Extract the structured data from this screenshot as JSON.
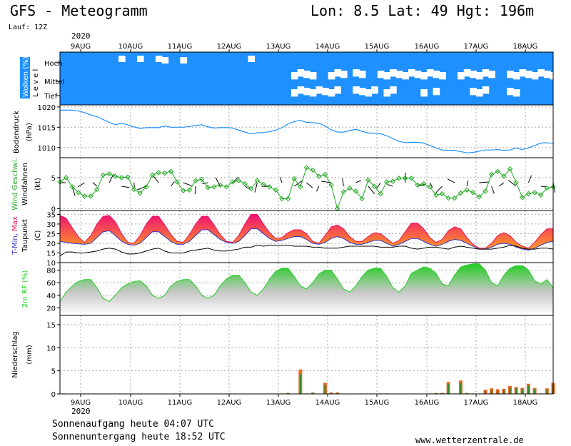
{
  "header": {
    "title": "GFS - Meteogramm",
    "coords": "Lon: 8.5 Lat: 49 Hgt: 196m",
    "run": "Lauf: 12Z",
    "year": "2020"
  },
  "footer": {
    "sunrise": "Sonnenaufgang heute 04:07 UTC",
    "sunset": "Sonnenuntergang heute 18:52 UTC",
    "source": "www.wetterzentrale.de"
  },
  "colors": {
    "cloud_clear": "#1e90ff",
    "cloud_cover": "#ffffff",
    "pressure": "#1e90ff",
    "wind": "#22aa22",
    "tmin": "#3333cc",
    "tmax": "#ee1155",
    "temp_fill_high": "#ee1177",
    "temp_fill_low": "#ffa020",
    "dewpoint": "#000000",
    "rh": "#22cc22",
    "precip_total": "#ee6622",
    "precip_conv": "#2e8b2e"
  },
  "chart_data": [
    {
      "type": "heatmap",
      "name_label": "Wolken (%)",
      "ylabel": "Level",
      "levels": [
        "Hoch",
        "Mittel",
        "Tief"
      ],
      "dates": [
        "9AUG",
        "10AUG",
        "11AUG",
        "12AUG",
        "13AUG",
        "14AUG",
        "15AUG",
        "16AUG",
        "17AUG",
        "18AUG"
      ],
      "cover_hoch": [
        0,
        0,
        0,
        0,
        0,
        0,
        0,
        0,
        0,
        0,
        1,
        0,
        0,
        1,
        0,
        0,
        1,
        1,
        0,
        0,
        1,
        0,
        0,
        0,
        0,
        0,
        0,
        0,
        0,
        0,
        0,
        1,
        0,
        0,
        0,
        0,
        0,
        0,
        0,
        0,
        0,
        0,
        0,
        0,
        0,
        0,
        0,
        0,
        0,
        0,
        0,
        0,
        0,
        0,
        0,
        0,
        0,
        0,
        0,
        0,
        0,
        0,
        0,
        0,
        0,
        0,
        0,
        0,
        0,
        0,
        0,
        0,
        0,
        0,
        0,
        0,
        0,
        0,
        0,
        0,
        0
      ],
      "cover_mittel": [
        0,
        0,
        0,
        0,
        0,
        0,
        0,
        0,
        0,
        0,
        0,
        0,
        0,
        0,
        0,
        0,
        0,
        0,
        0,
        0,
        0,
        0,
        0,
        0,
        0,
        0,
        0,
        0,
        0,
        0,
        0,
        0,
        0,
        0,
        0,
        0,
        0,
        0,
        1,
        1,
        1,
        1,
        0,
        0,
        1,
        1,
        1,
        0,
        1,
        1,
        0,
        0,
        1,
        1,
        1,
        1,
        1,
        1,
        1,
        1,
        1,
        1,
        1,
        0,
        0,
        1,
        1,
        1,
        1,
        1,
        1,
        0,
        0,
        1,
        1,
        1,
        1,
        1,
        1,
        1,
        1
      ],
      "cover_tief": [
        0,
        0,
        0,
        0,
        0,
        0,
        0,
        0,
        0,
        0,
        0,
        0,
        0,
        0,
        0,
        0,
        0,
        0,
        0,
        0,
        0,
        0,
        0,
        0,
        0,
        0,
        0,
        0,
        0,
        0,
        0,
        0,
        0,
        0,
        0,
        0,
        0,
        0,
        1,
        1,
        1,
        1,
        1,
        1,
        1,
        1,
        0,
        0,
        1,
        1,
        1,
        1,
        0,
        1,
        1,
        0,
        0,
        0,
        0,
        1,
        0,
        1,
        0,
        0,
        0,
        0,
        0,
        1,
        1,
        1,
        0,
        0,
        0,
        1,
        1,
        0,
        0,
        0,
        0,
        0,
        0
      ]
    },
    {
      "type": "line",
      "name_label": "Bodendruck",
      "ylabel": "(hPa)",
      "ylim": [
        1007.5,
        1020.5
      ],
      "yticks": [
        1010,
        1015,
        1020
      ],
      "values": [
        1019.2,
        1019.2,
        1019.2,
        1019.0,
        1018.6,
        1018.0,
        1017.6,
        1016.9,
        1016.2,
        1015.6,
        1016.0,
        1015.6,
        1015.1,
        1014.7,
        1014.9,
        1014.9,
        1014.9,
        1015.3,
        1015.0,
        1015.0,
        1015.0,
        1015.2,
        1015.4,
        1015.6,
        1015.1,
        1014.8,
        1014.9,
        1014.9,
        1014.8,
        1014.3,
        1013.8,
        1013.4,
        1013.6,
        1013.7,
        1013.9,
        1014.3,
        1014.9,
        1015.8,
        1016.4,
        1016.7,
        1016.2,
        1016.1,
        1016.0,
        1015.3,
        1014.4,
        1013.8,
        1013.8,
        1014.2,
        1014.5,
        1014.0,
        1013.6,
        1013.5,
        1013.4,
        1012.9,
        1012.2,
        1011.5,
        1011.2,
        1011.3,
        1011.3,
        1011.1,
        1010.5,
        1009.9,
        1009.4,
        1009.3,
        1009.3,
        1009.0,
        1008.7,
        1008.8,
        1009.1,
        1009.4,
        1009.4,
        1009.5,
        1009.3,
        1009.4,
        1009.9,
        1009.5,
        1009.9,
        1010.5,
        1011.1,
        1011.2,
        1011.0
      ]
    },
    {
      "type": "line",
      "name_label": "Wind Geschwi.",
      "name_label2": "Windfahnen",
      "ylabel": "(kt)",
      "ylim": [
        -0.3,
        8.2
      ],
      "yticks": [
        0,
        5
      ],
      "values": [
        4.3,
        5.0,
        3.5,
        2.6,
        2.0,
        2.0,
        3.1,
        5.4,
        5.6,
        5.2,
        5.0,
        5.1,
        3.1,
        2.5,
        3.5,
        5.4,
        5.8,
        5.7,
        6.0,
        4.3,
        2.9,
        3.0,
        4.5,
        4.7,
        3.4,
        3.5,
        3.8,
        3.5,
        4.3,
        4.5,
        4.0,
        3.2,
        4.5,
        3.9,
        3.5,
        3.0,
        1.6,
        1.6,
        4.8,
        3.5,
        6.6,
        6.2,
        5.2,
        5.5,
        3.8,
        0.0,
        2.7,
        3.3,
        2.8,
        1.6,
        4.6,
        3.6,
        2.4,
        4.3,
        4.4,
        4.9,
        4.9,
        4.9,
        3.8,
        4.0,
        3.5,
        2.2,
        2.4,
        1.7,
        1.7,
        2.5,
        3.0,
        2.6,
        1.9,
        2.8,
        5.5,
        6.0,
        5.2,
        6.4,
        4.2,
        1.8,
        2.4,
        2.6,
        2.2,
        3.3,
        3.5
      ]
    },
    {
      "type": "area",
      "name_label": "T-Min, Max",
      "name_label2": "Taupunkt",
      "ylabel": "(C)",
      "ylim": [
        10,
        37
      ],
      "yticks": [
        10,
        15,
        20,
        25,
        30,
        35
      ],
      "tmax": [
        34.5,
        33.0,
        28.0,
        23.3,
        20.5,
        24.0,
        30.0,
        34.0,
        34.5,
        31.0,
        25.0,
        20.5,
        20.0,
        24.0,
        30.0,
        34.0,
        34.0,
        29.5,
        24.5,
        21.0,
        20.5,
        24.5,
        30.0,
        34.0,
        34.0,
        29.5,
        24.5,
        21.0,
        20.5,
        24.0,
        30.0,
        35.0,
        35.0,
        30.0,
        25.5,
        22.5,
        23.0,
        25.5,
        27.0,
        27.0,
        25.0,
        21.0,
        20.0,
        24.0,
        28.5,
        29.5,
        27.5,
        23.5,
        21.0,
        21.0,
        23.5,
        25.5,
        25.0,
        22.5,
        20.0,
        21.5,
        26.0,
        30.5,
        30.5,
        27.5,
        23.0,
        20.5,
        22.0,
        26.5,
        28.5,
        27.5,
        23.0,
        19.5,
        17.5,
        17.5,
        20.0,
        24.0,
        25.5,
        24.0,
        20.5,
        18.5,
        17.5,
        20.5,
        24.5,
        27.5,
        27.5
      ],
      "tmin": [
        21.0,
        20.5,
        20.0,
        19.7,
        19.5,
        20.0,
        23.0,
        26.0,
        26.5,
        24.0,
        21.0,
        19.5,
        19.0,
        20.0,
        23.0,
        26.0,
        26.0,
        23.5,
        21.0,
        19.5,
        19.5,
        21.0,
        24.0,
        27.0,
        27.0,
        24.5,
        22.0,
        20.5,
        20.0,
        21.0,
        24.0,
        27.5,
        27.5,
        25.0,
        22.5,
        21.0,
        21.5,
        22.5,
        23.5,
        23.5,
        22.0,
        20.0,
        19.5,
        20.5,
        22.5,
        23.5,
        22.5,
        20.5,
        19.5,
        19.5,
        20.5,
        21.5,
        21.5,
        20.0,
        18.5,
        19.5,
        21.0,
        22.5,
        22.5,
        21.0,
        19.5,
        18.5,
        19.5,
        21.0,
        22.0,
        21.5,
        20.0,
        18.5,
        17.0,
        17.0,
        18.0,
        19.5,
        20.0,
        19.5,
        18.0,
        17.0,
        16.5,
        17.5,
        19.0,
        20.5,
        21.0
      ],
      "dewpoint": [
        13.5,
        15.5,
        15.5,
        15.0,
        15.0,
        15.5,
        16.0,
        17.0,
        17.5,
        17.0,
        15.5,
        14.5,
        14.5,
        15.0,
        16.0,
        17.0,
        17.5,
        16.0,
        15.0,
        15.0,
        15.0,
        16.0,
        16.5,
        17.0,
        17.5,
        16.5,
        16.0,
        16.0,
        16.5,
        17.0,
        18.0,
        18.0,
        19.0,
        18.5,
        19.0,
        19.0,
        19.0,
        19.0,
        18.5,
        18.5,
        18.5,
        18.0,
        18.0,
        17.5,
        17.5,
        17.5,
        18.0,
        18.5,
        18.5,
        18.5,
        18.5,
        18.5,
        18.0,
        18.0,
        18.0,
        18.5,
        18.5,
        17.5,
        17.0,
        17.5,
        18.0,
        18.0,
        17.5,
        17.0,
        18.0,
        18.5,
        18.0,
        17.5,
        17.0,
        17.0,
        17.0,
        17.5,
        18.0,
        19.0,
        18.5,
        17.5,
        17.0,
        17.0,
        17.5,
        17.5,
        17.0
      ]
    },
    {
      "type": "area",
      "name_label": "2m RF (%)",
      "ylim": [
        8,
        92
      ],
      "yticks": [
        20,
        40,
        60,
        80
      ],
      "values": [
        30,
        45,
        55,
        62,
        65,
        65,
        52,
        35,
        30,
        40,
        52,
        58,
        62,
        63,
        55,
        40,
        35,
        40,
        55,
        62,
        65,
        65,
        55,
        40,
        35,
        40,
        55,
        66,
        72,
        72,
        60,
        45,
        40,
        50,
        66,
        78,
        83,
        83,
        70,
        55,
        50,
        60,
        74,
        80,
        80,
        66,
        50,
        45,
        55,
        70,
        80,
        83,
        83,
        70,
        52,
        45,
        55,
        75,
        80,
        85,
        83,
        75,
        58,
        55,
        72,
        85,
        88,
        90,
        90,
        80,
        60,
        55,
        72,
        83,
        87,
        87,
        80,
        63,
        58,
        65,
        52
      ]
    },
    {
      "type": "bar",
      "name_label": "Niederschlag",
      "ylabel": "(mm)",
      "ylim": [
        0,
        17
      ],
      "yticks": [
        0,
        5,
        10,
        15
      ],
      "dates_bottom": [
        "9AUG",
        "10AUG",
        "11AUG",
        "12AUG",
        "13AUG",
        "14AUG",
        "15AUG",
        "16AUG",
        "17AUG",
        "18AUG"
      ],
      "values": [
        0,
        0,
        0,
        0,
        0,
        0,
        0,
        0,
        0,
        0,
        0,
        0,
        0,
        0,
        0,
        0,
        0,
        0,
        0,
        0,
        0,
        0,
        0,
        0,
        0,
        0,
        0,
        0,
        0,
        0,
        0,
        0,
        0,
        0,
        0,
        0,
        0.1,
        0.2,
        0,
        5.3,
        0.1,
        0.3,
        0,
        2.4,
        0.3,
        0.3,
        0,
        0,
        0,
        0,
        0,
        0,
        0.1,
        0.1,
        0,
        0,
        0,
        0,
        0,
        0,
        0.1,
        0.2,
        0.2,
        2.6,
        0.1,
        2.9,
        0.2,
        0.1,
        0,
        0.9,
        1.2,
        1.0,
        1.1,
        1.7,
        1.5,
        1.3,
        2.2,
        1.3,
        0.1,
        1.2,
        2.4
      ]
    }
  ]
}
